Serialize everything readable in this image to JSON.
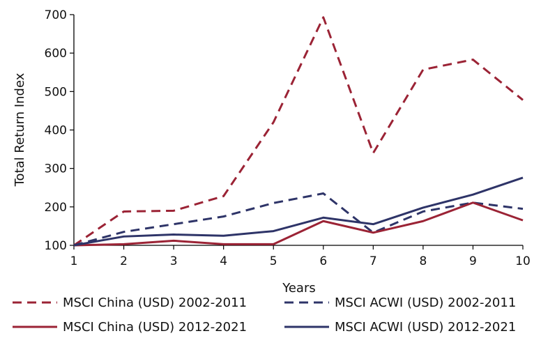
{
  "chart_data": {
    "type": "line",
    "title": "",
    "xlabel": "Years",
    "ylabel": "Total Return Index",
    "x": [
      1,
      2,
      3,
      4,
      5,
      6,
      7,
      8,
      9,
      10
    ],
    "xlim": [
      1,
      10
    ],
    "ylim": [
      100,
      700
    ],
    "yticks": [
      100,
      200,
      300,
      400,
      500,
      600,
      700
    ],
    "grid": false,
    "legend_position": "bottom",
    "series": [
      {
        "name": "MSCI China (USD) 2002-2011",
        "style": "dashed",
        "color": "#9b2335",
        "values": [
          100,
          188,
          190,
          228,
          420,
          693,
          340,
          557,
          583,
          478
        ]
      },
      {
        "name": "MSCI ACWI (USD) 2002-2011",
        "style": "dashed",
        "color": "#2e3468",
        "values": [
          100,
          135,
          155,
          175,
          210,
          235,
          133,
          188,
          211,
          195
        ]
      },
      {
        "name": "MSCI China (USD) 2012-2021",
        "style": "solid",
        "color": "#9b2335",
        "values": [
          100,
          103,
          112,
          103,
          103,
          163,
          133,
          163,
          211,
          165
        ]
      },
      {
        "name": "MSCI ACWI (USD) 2012-2021",
        "style": "solid",
        "color": "#2e3468",
        "values": [
          100,
          123,
          128,
          125,
          137,
          172,
          155,
          198,
          232,
          276
        ]
      }
    ]
  }
}
